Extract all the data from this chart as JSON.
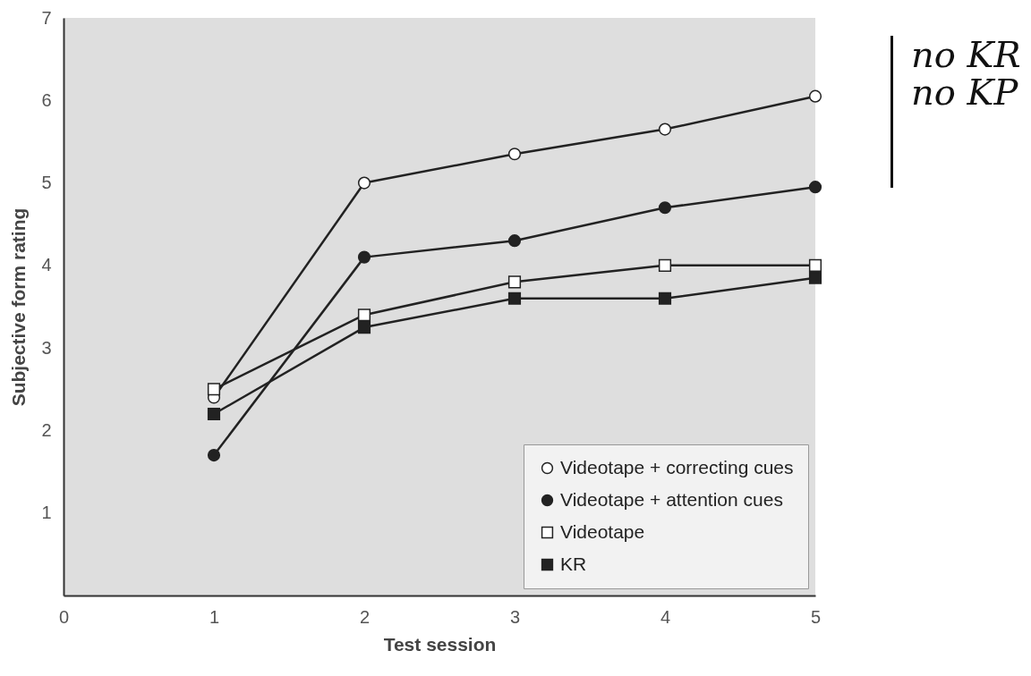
{
  "chart_data": {
    "type": "line",
    "xlabel": "Test session",
    "ylabel": "Subjective form rating",
    "x": [
      1,
      2,
      3,
      4,
      5
    ],
    "series": [
      {
        "name": "Videotape + correcting cues",
        "color": "#222222",
        "marker": "circle-open",
        "values": [
          2.4,
          5.0,
          5.35,
          5.65,
          6.05
        ]
      },
      {
        "name": "Videotape + attention cues",
        "color": "#222222",
        "marker": "circle",
        "values": [
          1.7,
          4.1,
          4.3,
          4.7,
          4.95
        ]
      },
      {
        "name": "Videotape",
        "color": "#222222",
        "marker": "square-open",
        "values": [
          2.5,
          3.4,
          3.8,
          4.0,
          4.0
        ]
      },
      {
        "name": "KR",
        "color": "#222222",
        "marker": "square",
        "values": [
          2.2,
          3.25,
          3.6,
          3.6,
          3.85
        ]
      }
    ],
    "xlim": [
      0,
      5
    ],
    "xticks": [
      0,
      1,
      2,
      3,
      4,
      5
    ],
    "ylim": [
      0,
      7
    ],
    "yticks": [
      1,
      2,
      3,
      4,
      5,
      6,
      7
    ],
    "grid": false,
    "legend": "bottom right",
    "annotations": [
      "no KR",
      "no KP"
    ]
  }
}
